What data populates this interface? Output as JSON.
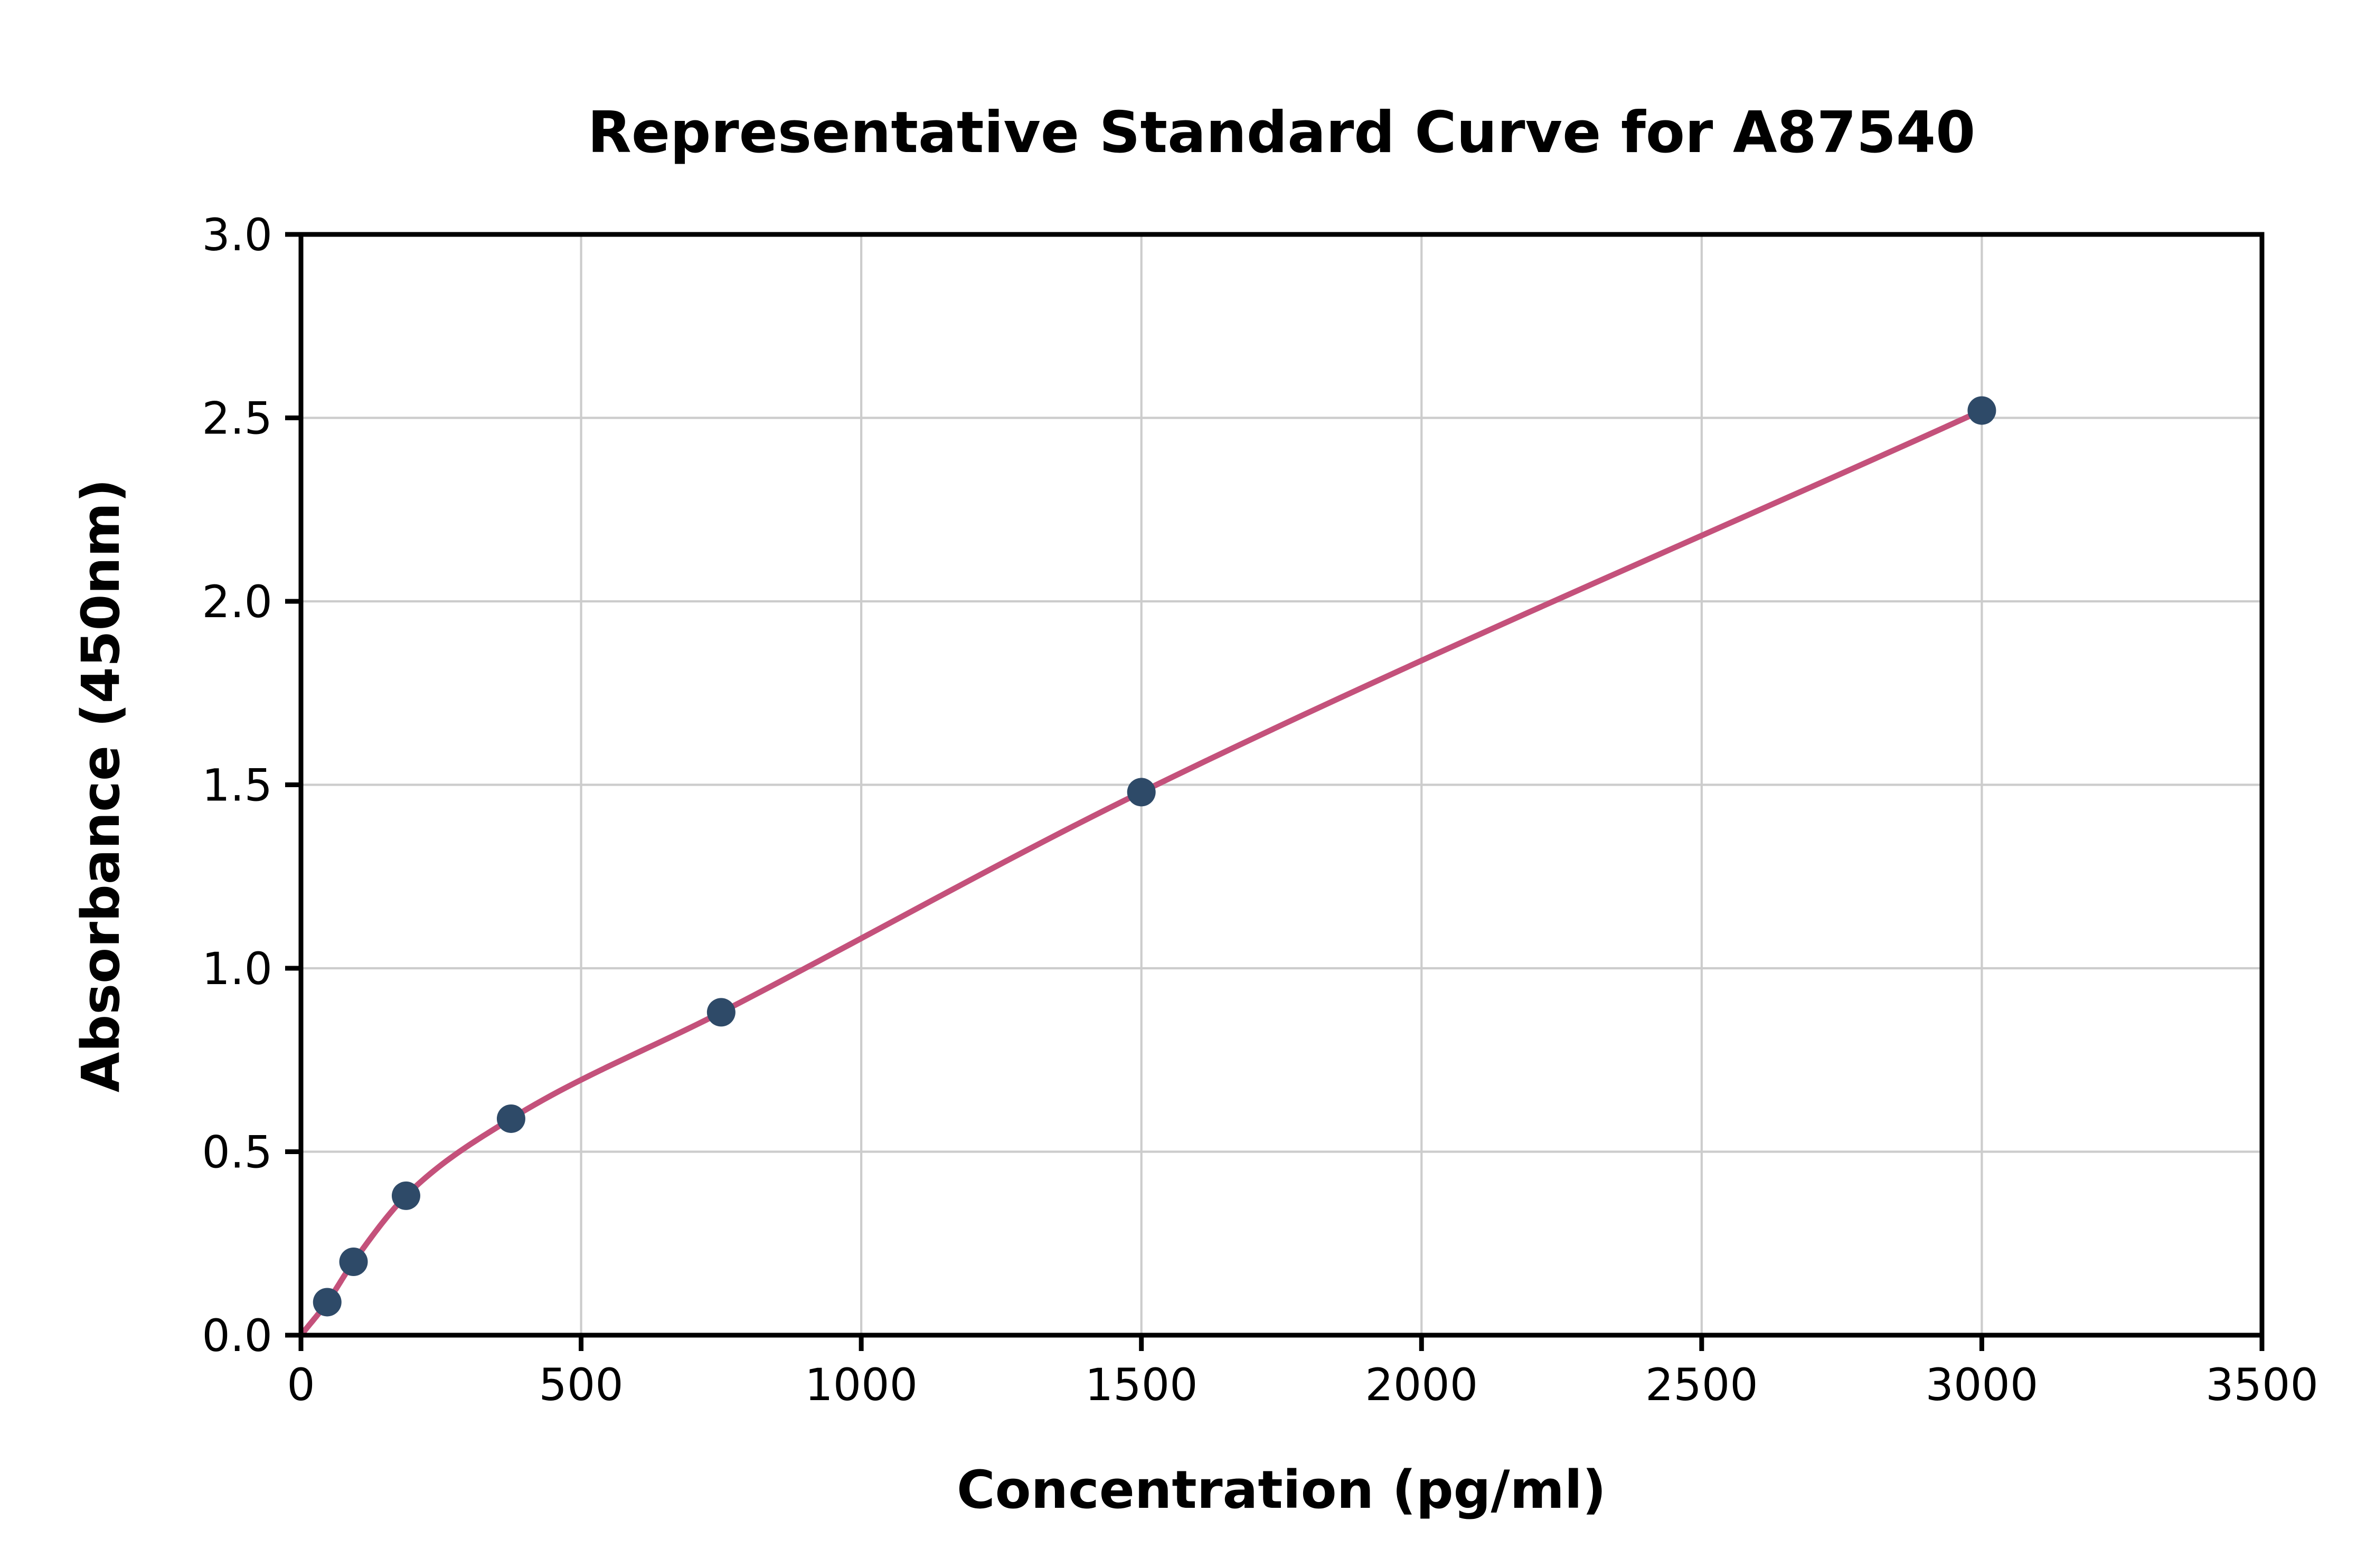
{
  "chart_data": {
    "type": "scatter",
    "title": "Representative Standard Curve for A87540",
    "xlabel": "Concentration (pg/ml)",
    "ylabel": "Absorbance (450nm)",
    "xlim": [
      0,
      3500
    ],
    "ylim": [
      0,
      3.0
    ],
    "xticks": [
      0,
      500,
      1000,
      1500,
      2000,
      2500,
      3000,
      3500
    ],
    "xtick_labels": [
      "0",
      "500",
      "1000",
      "1500",
      "2000",
      "2500",
      "3000",
      "3500"
    ],
    "yticks": [
      0,
      0.5,
      1.0,
      1.5,
      2.0,
      2.5,
      3.0
    ],
    "ytick_labels": [
      "0.0",
      "0.5",
      "1.0",
      "1.5",
      "2.0",
      "2.5",
      "3.0"
    ],
    "grid": true,
    "legend": "none",
    "points": [
      {
        "x": 46.9,
        "y": 0.09
      },
      {
        "x": 93.8,
        "y": 0.2
      },
      {
        "x": 187.5,
        "y": 0.38
      },
      {
        "x": 375,
        "y": 0.59
      },
      {
        "x": 750,
        "y": 0.88
      },
      {
        "x": 1500,
        "y": 1.48
      },
      {
        "x": 3000,
        "y": 2.52
      }
    ],
    "curve": {
      "type": "smooth-fit-through-points",
      "start": {
        "x": 0,
        "y": 0
      },
      "end_x": 3000
    },
    "colors": {
      "marker": "#2e4a68",
      "curve": "#c4517b",
      "grid": "#cccccc",
      "axis": "#000000",
      "background": "#ffffff"
    }
  }
}
